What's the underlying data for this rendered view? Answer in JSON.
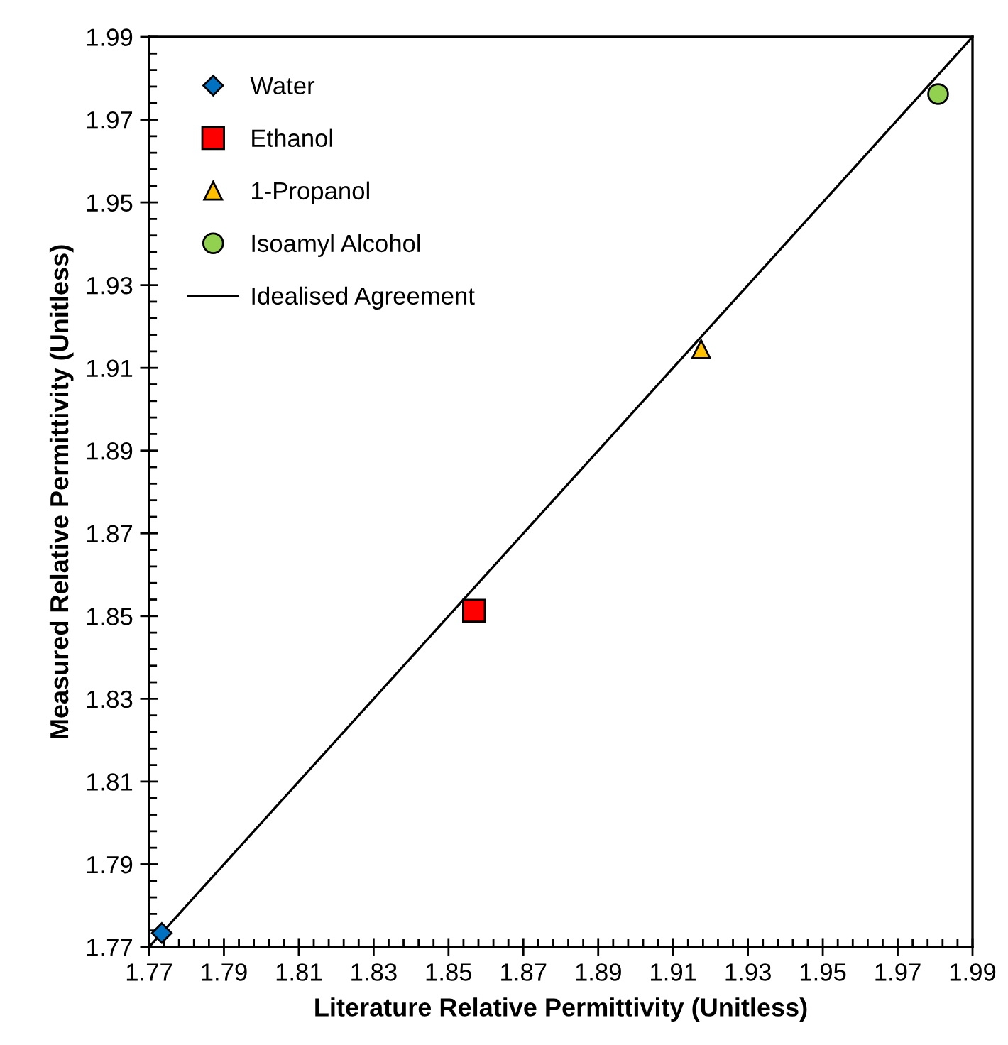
{
  "chart_data": {
    "type": "scatter",
    "xlabel": "Literature Relative Permittivity (Unitless)",
    "ylabel": "Measured Relative Permittivity (Unitless)",
    "xlim": [
      1.77,
      1.99
    ],
    "ylim": [
      1.77,
      1.99
    ],
    "xticks": [
      1.77,
      1.79,
      1.81,
      1.83,
      1.85,
      1.87,
      1.89,
      1.91,
      1.93,
      1.95,
      1.97,
      1.99
    ],
    "yticks": [
      1.77,
      1.79,
      1.81,
      1.83,
      1.85,
      1.87,
      1.89,
      1.91,
      1.93,
      1.95,
      1.97,
      1.99
    ],
    "grid": false,
    "legend": "top left",
    "series": [
      {
        "name": "Water",
        "color": "#0070c0",
        "marker": "diamond",
        "x": [
          1.7734
        ],
        "values": [
          1.7734
        ]
      },
      {
        "name": "Ethanol",
        "color": "#ff0000",
        "marker": "square",
        "x": [
          1.8568
        ],
        "values": [
          1.8513
        ]
      },
      {
        "name": "1-Propanol",
        "color": "#ffc000",
        "marker": "triangle",
        "x": [
          1.9175
        ],
        "values": [
          1.9145
        ]
      },
      {
        "name": "Isoamyl Alcohol",
        "color": "#92d050",
        "marker": "circle",
        "x": [
          1.9808
        ],
        "values": [
          1.9762
        ]
      },
      {
        "name": "Idealised Agreement",
        "type": "line",
        "color": "#000000",
        "line_style": "solid",
        "x": [
          1.77,
          1.99
        ],
        "values": [
          1.77,
          1.99
        ]
      }
    ]
  }
}
